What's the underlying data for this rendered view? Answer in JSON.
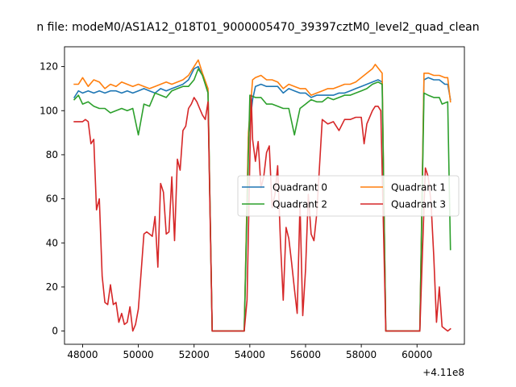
{
  "chart_data": {
    "type": "line",
    "title": "n file: modeM0/AS1A12_018T01_9000005470_39397cztM0_level2_quad_clean",
    "xlabel": "",
    "ylabel": "",
    "x_offset_label": "+4.11e8",
    "xlim": [
      47350,
      61700
    ],
    "ylim": [
      -6,
      129
    ],
    "xticks": [
      48000,
      50000,
      52000,
      54000,
      56000,
      58000,
      60000
    ],
    "xtick_labels": [
      "48000",
      "50000",
      "52000",
      "54000",
      "56000",
      "58000",
      "60000"
    ],
    "yticks": [
      0,
      20,
      40,
      60,
      80,
      100,
      120
    ],
    "ytick_labels": [
      "0",
      "20",
      "40",
      "60",
      "80",
      "100",
      "120"
    ],
    "grid": false,
    "legend": {
      "placement": "center-right",
      "columns": 2
    },
    "series": [
      {
        "name": "Quadrant 0",
        "color": "#1f77b4",
        "points": [
          [
            47700,
            106
          ],
          [
            47850,
            109
          ],
          [
            48000,
            108
          ],
          [
            48200,
            109
          ],
          [
            48400,
            108
          ],
          [
            48600,
            109
          ],
          [
            48800,
            108
          ],
          [
            49000,
            109
          ],
          [
            49200,
            109
          ],
          [
            49400,
            108
          ],
          [
            49600,
            109
          ],
          [
            49800,
            108
          ],
          [
            50000,
            109
          ],
          [
            50200,
            110
          ],
          [
            50400,
            109
          ],
          [
            50600,
            108
          ],
          [
            50800,
            110
          ],
          [
            51000,
            109
          ],
          [
            51200,
            110
          ],
          [
            51400,
            111
          ],
          [
            51600,
            112
          ],
          [
            51800,
            114
          ],
          [
            52000,
            119
          ],
          [
            52150,
            120
          ],
          [
            52300,
            116
          ],
          [
            52500,
            109
          ],
          [
            52650,
            0
          ],
          [
            53000,
            0
          ],
          [
            53400,
            0
          ],
          [
            53800,
            0
          ],
          [
            53950,
            88
          ],
          [
            54100,
            105
          ],
          [
            54200,
            111
          ],
          [
            54400,
            112
          ],
          [
            54600,
            111
          ],
          [
            54800,
            111
          ],
          [
            55000,
            111
          ],
          [
            55200,
            108
          ],
          [
            55400,
            110
          ],
          [
            55600,
            109
          ],
          [
            55800,
            108
          ],
          [
            56000,
            108
          ],
          [
            56200,
            106
          ],
          [
            56400,
            107
          ],
          [
            56600,
            107
          ],
          [
            56800,
            107
          ],
          [
            57000,
            107
          ],
          [
            57200,
            108
          ],
          [
            57400,
            108
          ],
          [
            57600,
            109
          ],
          [
            57800,
            110
          ],
          [
            58000,
            111
          ],
          [
            58200,
            112
          ],
          [
            58400,
            113
          ],
          [
            58600,
            114
          ],
          [
            58750,
            113
          ],
          [
            58880,
            0
          ],
          [
            59200,
            0
          ],
          [
            59600,
            0
          ],
          [
            60000,
            0
          ],
          [
            60100,
            0
          ],
          [
            60250,
            114
          ],
          [
            60400,
            115
          ],
          [
            60600,
            114
          ],
          [
            60800,
            114
          ],
          [
            61000,
            112
          ],
          [
            61100,
            112
          ],
          [
            61200,
            105
          ]
        ]
      },
      {
        "name": "Quadrant 1",
        "color": "#ff7f0e",
        "points": [
          [
            47700,
            112
          ],
          [
            47850,
            112
          ],
          [
            48000,
            115
          ],
          [
            48200,
            111
          ],
          [
            48400,
            114
          ],
          [
            48600,
            113
          ],
          [
            48800,
            110
          ],
          [
            49000,
            112
          ],
          [
            49200,
            111
          ],
          [
            49400,
            113
          ],
          [
            49600,
            112
          ],
          [
            49800,
            111
          ],
          [
            50000,
            112
          ],
          [
            50200,
            111
          ],
          [
            50400,
            110
          ],
          [
            50600,
            111
          ],
          [
            50800,
            112
          ],
          [
            51000,
            113
          ],
          [
            51200,
            112
          ],
          [
            51400,
            113
          ],
          [
            51600,
            114
          ],
          [
            51800,
            116
          ],
          [
            52000,
            120
          ],
          [
            52150,
            123
          ],
          [
            52300,
            117
          ],
          [
            52500,
            110
          ],
          [
            52650,
            0
          ],
          [
            53000,
            0
          ],
          [
            53400,
            0
          ],
          [
            53800,
            0
          ],
          [
            53950,
            90
          ],
          [
            54100,
            114
          ],
          [
            54200,
            115
          ],
          [
            54400,
            116
          ],
          [
            54600,
            114
          ],
          [
            54800,
            114
          ],
          [
            55000,
            113
          ],
          [
            55200,
            110
          ],
          [
            55400,
            112
          ],
          [
            55600,
            111
          ],
          [
            55800,
            110
          ],
          [
            56000,
            110
          ],
          [
            56200,
            107
          ],
          [
            56400,
            108
          ],
          [
            56600,
            109
          ],
          [
            56800,
            110
          ],
          [
            57000,
            110
          ],
          [
            57200,
            111
          ],
          [
            57400,
            112
          ],
          [
            57600,
            112
          ],
          [
            57800,
            113
          ],
          [
            58000,
            115
          ],
          [
            58200,
            117
          ],
          [
            58400,
            119
          ],
          [
            58500,
            121
          ],
          [
            58750,
            117
          ],
          [
            58880,
            0
          ],
          [
            59200,
            0
          ],
          [
            59600,
            0
          ],
          [
            60000,
            0
          ],
          [
            60100,
            0
          ],
          [
            60250,
            117
          ],
          [
            60400,
            117
          ],
          [
            60600,
            116
          ],
          [
            60800,
            116
          ],
          [
            61000,
            115
          ],
          [
            61100,
            115
          ],
          [
            61200,
            104
          ]
        ]
      },
      {
        "name": "Quadrant 2",
        "color": "#2ca02c",
        "points": [
          [
            47700,
            105
          ],
          [
            47850,
            107
          ],
          [
            48000,
            103
          ],
          [
            48200,
            104
          ],
          [
            48400,
            102
          ],
          [
            48600,
            101
          ],
          [
            48800,
            101
          ],
          [
            49000,
            99
          ],
          [
            49200,
            100
          ],
          [
            49400,
            101
          ],
          [
            49600,
            100
          ],
          [
            49800,
            101
          ],
          [
            50000,
            89
          ],
          [
            50200,
            103
          ],
          [
            50400,
            102
          ],
          [
            50600,
            108
          ],
          [
            50800,
            107
          ],
          [
            51000,
            106
          ],
          [
            51200,
            109
          ],
          [
            51400,
            110
          ],
          [
            51600,
            111
          ],
          [
            51800,
            111
          ],
          [
            52000,
            114
          ],
          [
            52150,
            119
          ],
          [
            52300,
            116
          ],
          [
            52500,
            108
          ],
          [
            52650,
            0
          ],
          [
            53000,
            0
          ],
          [
            53400,
            0
          ],
          [
            53800,
            0
          ],
          [
            53950,
            80
          ],
          [
            54000,
            107
          ],
          [
            54200,
            106
          ],
          [
            54400,
            106
          ],
          [
            54600,
            103
          ],
          [
            54800,
            103
          ],
          [
            55000,
            102
          ],
          [
            55200,
            101
          ],
          [
            55400,
            101
          ],
          [
            55600,
            89
          ],
          [
            55800,
            101
          ],
          [
            56000,
            103
          ],
          [
            56200,
            105
          ],
          [
            56400,
            104
          ],
          [
            56600,
            104
          ],
          [
            56800,
            106
          ],
          [
            57000,
            105
          ],
          [
            57200,
            106
          ],
          [
            57400,
            107
          ],
          [
            57600,
            107
          ],
          [
            57800,
            108
          ],
          [
            58000,
            109
          ],
          [
            58200,
            110
          ],
          [
            58400,
            112
          ],
          [
            58600,
            113
          ],
          [
            58750,
            112
          ],
          [
            58880,
            0
          ],
          [
            59200,
            0
          ],
          [
            59600,
            0
          ],
          [
            60000,
            0
          ],
          [
            60100,
            0
          ],
          [
            60250,
            108
          ],
          [
            60400,
            107
          ],
          [
            60600,
            106
          ],
          [
            60800,
            106
          ],
          [
            60900,
            103
          ],
          [
            61100,
            104
          ],
          [
            61200,
            37
          ]
        ]
      },
      {
        "name": "Quadrant 3",
        "color": "#d62728",
        "points": [
          [
            47700,
            95
          ],
          [
            47850,
            95
          ],
          [
            48000,
            95
          ],
          [
            48100,
            96
          ],
          [
            48200,
            95
          ],
          [
            48300,
            85
          ],
          [
            48400,
            87
          ],
          [
            48500,
            55
          ],
          [
            48600,
            60
          ],
          [
            48700,
            25
          ],
          [
            48800,
            13
          ],
          [
            48900,
            12
          ],
          [
            49000,
            21
          ],
          [
            49100,
            12
          ],
          [
            49200,
            13
          ],
          [
            49300,
            4
          ],
          [
            49400,
            8
          ],
          [
            49500,
            3
          ],
          [
            49600,
            4
          ],
          [
            49700,
            11
          ],
          [
            49800,
            0
          ],
          [
            49900,
            3
          ],
          [
            50000,
            10
          ],
          [
            50100,
            27
          ],
          [
            50200,
            44
          ],
          [
            50300,
            45
          ],
          [
            50400,
            44
          ],
          [
            50500,
            43
          ],
          [
            50600,
            52
          ],
          [
            50700,
            29
          ],
          [
            50800,
            67
          ],
          [
            50900,
            63
          ],
          [
            51000,
            44
          ],
          [
            51100,
            45
          ],
          [
            51200,
            70
          ],
          [
            51300,
            41
          ],
          [
            51400,
            78
          ],
          [
            51500,
            73
          ],
          [
            51600,
            91
          ],
          [
            51700,
            93
          ],
          [
            51800,
            101
          ],
          [
            51900,
            103
          ],
          [
            52000,
            106
          ],
          [
            52100,
            104
          ],
          [
            52200,
            101
          ],
          [
            52300,
            98
          ],
          [
            52400,
            96
          ],
          [
            52500,
            104
          ],
          [
            52650,
            0
          ],
          [
            53000,
            0
          ],
          [
            53400,
            0
          ],
          [
            53800,
            0
          ],
          [
            53900,
            14
          ],
          [
            54000,
            78
          ],
          [
            54050,
            107
          ],
          [
            54100,
            87
          ],
          [
            54200,
            77
          ],
          [
            54300,
            86
          ],
          [
            54400,
            65
          ],
          [
            54500,
            70
          ],
          [
            54600,
            81
          ],
          [
            54700,
            84
          ],
          [
            54800,
            56
          ],
          [
            54900,
            62
          ],
          [
            55000,
            75
          ],
          [
            55100,
            40
          ],
          [
            55200,
            14
          ],
          [
            55300,
            47
          ],
          [
            55400,
            42
          ],
          [
            55500,
            31
          ],
          [
            55600,
            19
          ],
          [
            55700,
            8
          ],
          [
            55800,
            58
          ],
          [
            55900,
            7
          ],
          [
            56000,
            28
          ],
          [
            56100,
            62
          ],
          [
            56200,
            44
          ],
          [
            56300,
            41
          ],
          [
            56400,
            53
          ],
          [
            56600,
            96
          ],
          [
            56800,
            94
          ],
          [
            57000,
            95
          ],
          [
            57200,
            91
          ],
          [
            57400,
            96
          ],
          [
            57600,
            96
          ],
          [
            57800,
            97
          ],
          [
            58000,
            97
          ],
          [
            58100,
            85
          ],
          [
            58200,
            94
          ],
          [
            58400,
            100
          ],
          [
            58500,
            102
          ],
          [
            58600,
            102
          ],
          [
            58700,
            100
          ],
          [
            58880,
            0
          ],
          [
            59200,
            0
          ],
          [
            59600,
            0
          ],
          [
            60000,
            0
          ],
          [
            60100,
            0
          ],
          [
            60200,
            38
          ],
          [
            60300,
            74
          ],
          [
            60400,
            70
          ],
          [
            60500,
            59
          ],
          [
            60600,
            34
          ],
          [
            60700,
            4
          ],
          [
            60800,
            20
          ],
          [
            60900,
            2
          ],
          [
            61000,
            1
          ],
          [
            61100,
            0
          ],
          [
            61200,
            1
          ]
        ]
      }
    ]
  }
}
